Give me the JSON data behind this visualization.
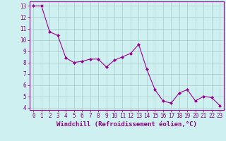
{
  "x": [
    0,
    1,
    2,
    3,
    4,
    5,
    6,
    7,
    8,
    9,
    10,
    11,
    12,
    13,
    14,
    15,
    16,
    17,
    18,
    19,
    20,
    21,
    22,
    23
  ],
  "y": [
    13.0,
    13.0,
    10.7,
    10.4,
    8.4,
    8.0,
    8.1,
    8.3,
    8.3,
    7.6,
    8.2,
    8.5,
    8.8,
    9.6,
    7.4,
    5.6,
    4.6,
    4.4,
    5.3,
    5.6,
    4.6,
    5.0,
    4.9,
    4.2
  ],
  "line_color": "#990099",
  "marker": "D",
  "marker_size": 2,
  "bg_color": "#cff0f0",
  "grid_color": "#aacccc",
  "xlabel": "Windchill (Refroidissement éolien,°C)",
  "ylim": [
    3.8,
    13.4
  ],
  "xlim": [
    -0.5,
    23.5
  ],
  "yticks": [
    4,
    5,
    6,
    7,
    8,
    9,
    10,
    11,
    12,
    13
  ],
  "xticks": [
    0,
    1,
    2,
    3,
    4,
    5,
    6,
    7,
    8,
    9,
    10,
    11,
    12,
    13,
    14,
    15,
    16,
    17,
    18,
    19,
    20,
    21,
    22,
    23
  ],
  "tick_color": "#880088",
  "label_color": "#880088",
  "xlabel_fontsize": 6.5,
  "tick_fontsize": 5.5,
  "linewidth": 0.8
}
